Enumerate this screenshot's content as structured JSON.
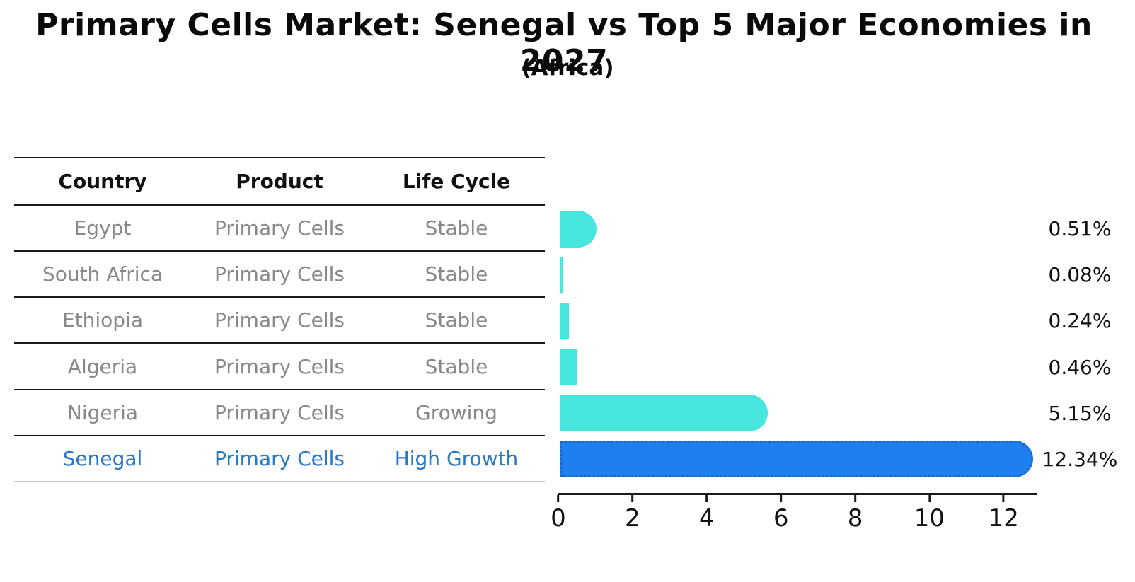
{
  "title": "Primary Cells Market: Senegal vs Top 5 Major Economies in 2027",
  "subtitle": "(Africa)",
  "table": {
    "headers": [
      "Country",
      "Product",
      "Life Cycle"
    ],
    "rows": [
      {
        "country": "Egypt",
        "product": "Primary Cells",
        "life_cycle": "Stable"
      },
      {
        "country": "South Africa",
        "product": "Primary Cells",
        "life_cycle": "Stable"
      },
      {
        "country": "Ethiopia",
        "product": "Primary Cells",
        "life_cycle": "Stable"
      },
      {
        "country": "Algeria",
        "product": "Primary Cells",
        "life_cycle": "Stable"
      },
      {
        "country": "Nigeria",
        "product": "Primary Cells",
        "life_cycle": "Growing"
      },
      {
        "country": "Senegal",
        "product": "Primary Cells",
        "life_cycle": "High Growth"
      }
    ],
    "highlight_row": "Senegal"
  },
  "chart_data": {
    "type": "bar",
    "orientation": "horizontal",
    "title": "Primary Cells Market: Senegal vs Top 5 Major Economies in 2027",
    "subtitle": "(Africa)",
    "categories": [
      "Egypt",
      "South Africa",
      "Ethiopia",
      "Algeria",
      "Nigeria",
      "Senegal"
    ],
    "values": [
      0.51,
      0.08,
      0.24,
      0.46,
      5.15,
      12.34
    ],
    "value_labels": [
      "0.51%",
      "0.08%",
      "0.24%",
      "0.46%",
      "5.15%",
      "12.34%"
    ],
    "unit": "%",
    "x_ticks": [
      "0",
      "2",
      "4",
      "6",
      "8",
      "10",
      "12"
    ],
    "xlim": [
      0,
      12.91
    ],
    "grid": false,
    "legend": "none",
    "bar_color": "#47E7DF",
    "highlight_index": 5,
    "highlight_color": "#1E80F0",
    "highlight_border_color": "#1B64C0"
  },
  "colors": {
    "title_text": "#0a0a0a",
    "table_text": "#898989",
    "highlight_text": "#2878C8",
    "line": "#1a1a1a",
    "table_bottom_line": "#c4c4c4"
  }
}
